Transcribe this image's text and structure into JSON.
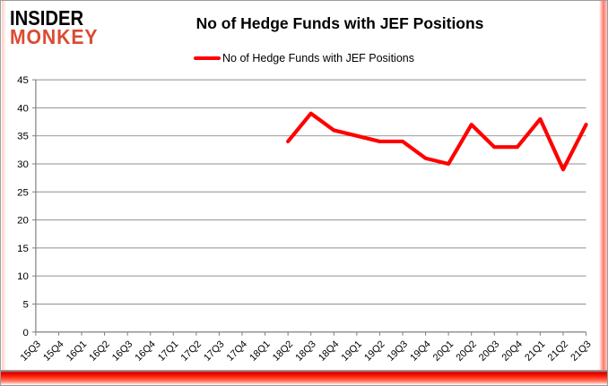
{
  "logo": {
    "line1": "INSIDER",
    "line2": "MONKEY"
  },
  "chart_data": {
    "type": "line",
    "title": "No of Hedge Funds with JEF Positions",
    "xlabel": "",
    "ylabel": "",
    "ylim": [
      0,
      45
    ],
    "ytick_step": 5,
    "grid": true,
    "legend_position": "top",
    "categories": [
      "15Q3",
      "15Q4",
      "16Q1",
      "16Q2",
      "16Q3",
      "16Q4",
      "17Q1",
      "17Q2",
      "17Q3",
      "17Q4",
      "18Q1",
      "18Q2",
      "18Q3",
      "18Q4",
      "19Q1",
      "19Q2",
      "19Q3",
      "19Q4",
      "20Q1",
      "20Q2",
      "20Q3",
      "20Q4",
      "21Q1",
      "21Q2",
      "21Q3"
    ],
    "series": [
      {
        "name": "No of Hedge Funds with JEF Positions",
        "color": "#ff0000",
        "values": [
          null,
          null,
          null,
          null,
          null,
          null,
          null,
          null,
          null,
          null,
          null,
          34,
          39,
          36,
          35,
          34,
          34,
          31,
          30,
          37,
          33,
          33,
          38,
          29,
          37
        ]
      }
    ]
  },
  "colors": {
    "accent_red": "#ff0000",
    "logo_red": "#dc4a32",
    "gridline": "#8f8f8f",
    "axis": "#7f7f7f",
    "text": "#000000",
    "card_border": "#9c9c9c"
  }
}
